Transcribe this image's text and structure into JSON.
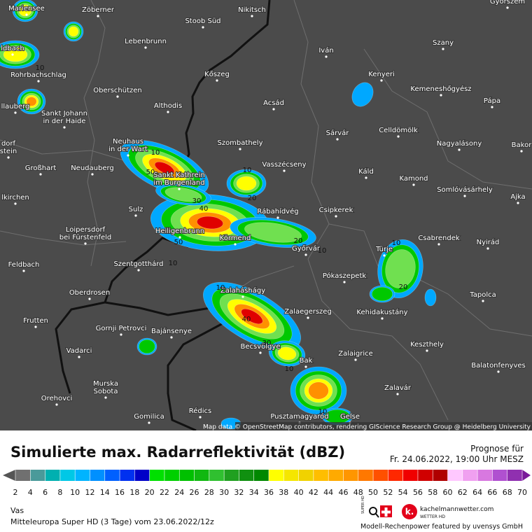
{
  "map": {
    "places": [
      [
        "Mariensee"
      ],
      [
        "Zöberner"
      ],
      [
        "Stoob Süd"
      ],
      [
        "Nikitsch"
      ],
      [
        "Lebenbrunn"
      ],
      [
        "Szany"
      ],
      [
        "Iván"
      ],
      [
        "ldbach"
      ],
      [
        "Rohrbachschlag"
      ],
      [
        "Kőszeg"
      ],
      [
        "Kenyeri"
      ],
      [
        "Oberschützen"
      ],
      [
        "Kemeneshőgyész"
      ],
      [
        "llauberg"
      ],
      [
        "Sankt Johann",
        "in der Haide"
      ],
      [
        "Althodis"
      ],
      [
        "Acsád"
      ],
      [
        "Pápa"
      ],
      [
        "Sárvár"
      ],
      [
        "Celldömölk"
      ],
      [
        "dorf",
        "stein"
      ],
      [
        "Szombathely"
      ],
      [
        "Neuhaus",
        "in der Wart"
      ],
      [
        "Nagyalásony"
      ],
      [
        "Bakor"
      ],
      [
        "Großhart"
      ],
      [
        "Neudauberg"
      ],
      [
        "Vasszécseny"
      ],
      [
        "Káld"
      ],
      [
        "Sankt Kathrein",
        "im Burgenland"
      ],
      [
        "Kamond"
      ],
      [
        "Somlóvásárhely"
      ],
      [
        "lkirchen"
      ],
      [
        "Ajka"
      ],
      [
        "Sulz"
      ],
      [
        "Rábahídvég"
      ],
      [
        "Csipkerek"
      ],
      [
        "Loipersdorf",
        "bei Fürstenfeld"
      ],
      [
        "Heiligenbrunn"
      ],
      [
        "Körmend"
      ],
      [
        "Csabrendek"
      ],
      [
        "Győrvár"
      ],
      [
        "Türje"
      ],
      [
        "Nyirád"
      ],
      [
        "Feldbach"
      ],
      [
        "Szentgotthárd"
      ],
      [
        "Pókaszepetk"
      ],
      [
        "Oberdrosen"
      ],
      [
        "Zalaháshágy"
      ],
      [
        "Tapolca"
      ],
      [
        "Zalaegerszeg"
      ],
      [
        "Kehidakustány"
      ],
      [
        "Frutten"
      ],
      [
        "Gornji Petrovci"
      ],
      [
        "Bajánsenye"
      ],
      [
        "Becsvölgye"
      ],
      [
        "Keszthely"
      ],
      [
        "Vadarci"
      ],
      [
        "Bak"
      ],
      [
        "Zalaigrice"
      ],
      [
        "Balatonfenyves"
      ],
      [
        "Murska",
        "Sobota"
      ],
      [
        "Zalavár"
      ],
      [
        "Orehovci"
      ],
      [
        "Rédics"
      ],
      [
        "Pusztamagyaród"
      ],
      [
        "Gomilica"
      ],
      [
        "Gelse"
      ],
      [
        "Győrszem"
      ]
    ],
    "contour_labels": [
      "10",
      "50",
      "10",
      "20",
      "30",
      "40",
      "50",
      "20",
      "10",
      "10",
      "10",
      "20",
      "10",
      "40",
      "30",
      "10",
      "10",
      "10"
    ],
    "attribution": "Map data © OpenStreetMap contributors, rendering GIScience Research Group @ Heidelberg University"
  },
  "legend": {
    "title": "Simulierte max. Radarreflektivität (dBZ)",
    "forecast_label": "Prognose für",
    "forecast_time": "Fr. 24.06.2022, 19:00 Uhr MESZ",
    "ticks": [
      2,
      4,
      6,
      8,
      10,
      12,
      14,
      16,
      18,
      20,
      22,
      24,
      26,
      28,
      30,
      32,
      34,
      36,
      38,
      40,
      42,
      44,
      46,
      48,
      50,
      52,
      54,
      56,
      58,
      60,
      62,
      64,
      66,
      68,
      70
    ],
    "colors": [
      "#707070",
      "#4a9a9a",
      "#00b0b0",
      "#00c8e6",
      "#00b4ff",
      "#0090ff",
      "#0060ff",
      "#0030f0",
      "#0000c8",
      "#00e000",
      "#00d000",
      "#00c000",
      "#10b810",
      "#30c030",
      "#20a020",
      "#109010",
      "#008800",
      "#ffff00",
      "#f5e600",
      "#f0d200",
      "#ffbe00",
      "#ffaa00",
      "#ff9600",
      "#ff7800",
      "#ff5000",
      "#ff2800",
      "#f00000",
      "#d00000",
      "#b00000",
      "#ffc8ff",
      "#f0a0f0",
      "#d878e0",
      "#b050d0",
      "#9030b0"
    ]
  },
  "footer": {
    "region": "Vas",
    "model": "Mitteleuropa Super HD (3 Tage) vom 23.06.2022/12z",
    "super_hd": "SUPER HD",
    "brand": "kachelmannwetter.com",
    "brand_sub": "WETTER HD",
    "sponsor": "Modell-Rechenpower featured by uvensys GmbH"
  }
}
